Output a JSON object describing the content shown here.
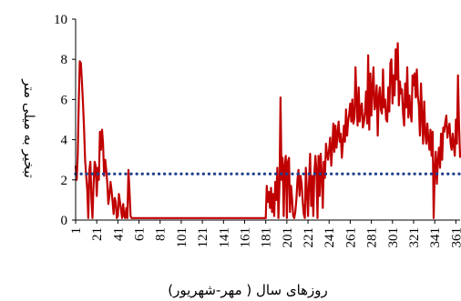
{
  "chart_data": {
    "type": "line",
    "title": "",
    "xlabel": "روزهای سال ( مهر-شهریور)",
    "ylabel": "تبخیر به میلی متر",
    "xlim": [
      1,
      365
    ],
    "ylim": [
      0,
      10
    ],
    "y_ticks": [
      "0",
      "2",
      "4",
      "6",
      "8",
      "10"
    ],
    "x_ticks": [
      "1",
      "21",
      "41",
      "61",
      "81",
      "101",
      "121",
      "141",
      "161",
      "181",
      "201",
      "221",
      "241",
      "261",
      "281",
      "301",
      "321",
      "341",
      "361"
    ],
    "grid": false,
    "legend": "none",
    "series": [
      {
        "style": "solid",
        "color": "#c00000",
        "points": [
          [
            1,
            2.7
          ],
          [
            2,
            2.0
          ],
          [
            3,
            3.2
          ],
          [
            4,
            6.0
          ],
          [
            5,
            7.9
          ],
          [
            6,
            7.8
          ],
          [
            7,
            6.8
          ],
          [
            8,
            5.8
          ],
          [
            9,
            4.5
          ],
          [
            10,
            3.0
          ],
          [
            11,
            2.2
          ],
          [
            12,
            1.5
          ],
          [
            13,
            0.1
          ],
          [
            14,
            2.5
          ],
          [
            15,
            2.9
          ],
          [
            16,
            1.0
          ],
          [
            17,
            0.1
          ],
          [
            18,
            1.8
          ],
          [
            19,
            2.9
          ],
          [
            20,
            2.7
          ],
          [
            21,
            1.2
          ],
          [
            22,
            2.6
          ],
          [
            23,
            2.0
          ],
          [
            24,
            4.4
          ],
          [
            25,
            3.5
          ],
          [
            26,
            4.5
          ],
          [
            27,
            3.8
          ],
          [
            28,
            2.2
          ],
          [
            29,
            3.0
          ],
          [
            30,
            2.5
          ],
          [
            31,
            1.8
          ],
          [
            32,
            0.8
          ],
          [
            33,
            1.2
          ],
          [
            34,
            1.9
          ],
          [
            35,
            1.5
          ],
          [
            36,
            0.9
          ],
          [
            37,
            0.3
          ],
          [
            38,
            1.1
          ],
          [
            39,
            0.9
          ],
          [
            40,
            0.1
          ],
          [
            41,
            0.2
          ],
          [
            42,
            1.3
          ],
          [
            43,
            0.9
          ],
          [
            44,
            0.5
          ],
          [
            45,
            0.1
          ],
          [
            46,
            0.8
          ],
          [
            47,
            0.2
          ],
          [
            48,
            0.1
          ],
          [
            49,
            0.6
          ],
          [
            50,
            0.1
          ],
          [
            51,
            2.5
          ],
          [
            52,
            1.5
          ],
          [
            53,
            0.2
          ],
          [
            54,
            0.1
          ],
          [
            55,
            0.1
          ],
          [
            100,
            0.1
          ],
          [
            150,
            0.1
          ],
          [
            180,
            0.1
          ],
          [
            181,
            0.1
          ],
          [
            182,
            1.7
          ],
          [
            183,
            0.9
          ],
          [
            184,
            1.4
          ],
          [
            185,
            0.6
          ],
          [
            186,
            1.6
          ],
          [
            187,
            0.4
          ],
          [
            188,
            1.3
          ],
          [
            189,
            0.2
          ],
          [
            190,
            1.9
          ],
          [
            191,
            1.0
          ],
          [
            192,
            2.6
          ],
          [
            193,
            0.1
          ],
          [
            194,
            1.8
          ],
          [
            195,
            6.1
          ],
          [
            196,
            2.0
          ],
          [
            197,
            3.1
          ],
          [
            198,
            0.2
          ],
          [
            199,
            2.7
          ],
          [
            200,
            3.2
          ],
          [
            201,
            0.1
          ],
          [
            202,
            2.9
          ],
          [
            203,
            3.1
          ],
          [
            204,
            0.4
          ],
          [
            205,
            1.7
          ],
          [
            206,
            1.0
          ],
          [
            207,
            0.2
          ],
          [
            208,
            0.1
          ],
          [
            209,
            0.4
          ],
          [
            210,
            1.0
          ],
          [
            211,
            2.0
          ],
          [
            212,
            2.5
          ],
          [
            213,
            1.2
          ],
          [
            214,
            2.2
          ],
          [
            215,
            1.8
          ],
          [
            216,
            0.9
          ],
          [
            217,
            0.3
          ],
          [
            218,
            0.1
          ],
          [
            219,
            2.6
          ],
          [
            220,
            1.4
          ],
          [
            221,
            0.2
          ],
          [
            222,
            1.9
          ],
          [
            223,
            3.3
          ],
          [
            224,
            0.7
          ],
          [
            225,
            2.2
          ],
          [
            226,
            0.2
          ],
          [
            227,
            2.3
          ],
          [
            228,
            3.2
          ],
          [
            229,
            2.5
          ],
          [
            230,
            0.1
          ],
          [
            231,
            3.2
          ],
          [
            232,
            1.2
          ],
          [
            233,
            3.3
          ],
          [
            234,
            2.3
          ],
          [
            235,
            0.6
          ],
          [
            236,
            2.9
          ],
          [
            237,
            2.1
          ],
          [
            238,
            3.8
          ],
          [
            239,
            3.3
          ],
          [
            240,
            3.0
          ],
          [
            241,
            3.5
          ],
          [
            242,
            4.1
          ],
          [
            243,
            2.7
          ],
          [
            244,
            3.6
          ],
          [
            245,
            4.8
          ],
          [
            246,
            3.4
          ],
          [
            247,
            4.7
          ],
          [
            248,
            3.6
          ],
          [
            249,
            4.3
          ],
          [
            250,
            4.9
          ],
          [
            251,
            3.9
          ],
          [
            252,
            4.3
          ],
          [
            253,
            3.1
          ],
          [
            254,
            3.8
          ],
          [
            255,
            4.7
          ],
          [
            256,
            3.9
          ],
          [
            257,
            5.5
          ],
          [
            258,
            4.2
          ],
          [
            259,
            4.9
          ],
          [
            260,
            5.3
          ],
          [
            261,
            5.8
          ],
          [
            262,
            4.9
          ],
          [
            263,
            6.0
          ],
          [
            264,
            4.8
          ],
          [
            265,
            5.1
          ],
          [
            266,
            7.6
          ],
          [
            267,
            5.9
          ],
          [
            268,
            4.7
          ],
          [
            269,
            6.6
          ],
          [
            270,
            4.9
          ],
          [
            271,
            5.6
          ],
          [
            272,
            5.8
          ],
          [
            273,
            4.6
          ],
          [
            274,
            4.9
          ],
          [
            275,
            5.4
          ],
          [
            276,
            6.4
          ],
          [
            277,
            4.8
          ],
          [
            278,
            8.2
          ],
          [
            279,
            4.5
          ],
          [
            280,
            7.3
          ],
          [
            281,
            5.2
          ],
          [
            282,
            6.6
          ],
          [
            283,
            7.6
          ],
          [
            284,
            5.5
          ],
          [
            285,
            5.8
          ],
          [
            286,
            6.7
          ],
          [
            287,
            4.2
          ],
          [
            288,
            6.1
          ],
          [
            289,
            6.6
          ],
          [
            290,
            5.5
          ],
          [
            291,
            5.3
          ],
          [
            292,
            7.5
          ],
          [
            293,
            5.6
          ],
          [
            294,
            6.0
          ],
          [
            295,
            5.0
          ],
          [
            296,
            4.9
          ],
          [
            297,
            6.6
          ],
          [
            298,
            5.4
          ],
          [
            299,
            7.8
          ],
          [
            300,
            8.0
          ],
          [
            301,
            5.8
          ],
          [
            302,
            7.2
          ],
          [
            303,
            6.2
          ],
          [
            304,
            8.5
          ],
          [
            305,
            7.0
          ],
          [
            306,
            8.8
          ],
          [
            307,
            5.7
          ],
          [
            308,
            6.9
          ],
          [
            309,
            6.3
          ],
          [
            310,
            6.5
          ],
          [
            311,
            5.3
          ],
          [
            312,
            4.7
          ],
          [
            313,
            6.8
          ],
          [
            314,
            5.6
          ],
          [
            315,
            7.6
          ],
          [
            316,
            5.1
          ],
          [
            317,
            6.2
          ],
          [
            318,
            5.4
          ],
          [
            319,
            4.9
          ],
          [
            320,
            7.2
          ],
          [
            321,
            6.7
          ],
          [
            322,
            7.3
          ],
          [
            323,
            6.1
          ],
          [
            324,
            7.5
          ],
          [
            325,
            6.2
          ],
          [
            326,
            5.7
          ],
          [
            327,
            4.2
          ],
          [
            328,
            6.8
          ],
          [
            329,
            5.1
          ],
          [
            330,
            3.8
          ],
          [
            331,
            5.9
          ],
          [
            332,
            4.4
          ],
          [
            333,
            3.8
          ],
          [
            334,
            4.8
          ],
          [
            335,
            4.0
          ],
          [
            336,
            3.5
          ],
          [
            337,
            4.5
          ],
          [
            338,
            3.2
          ],
          [
            339,
            4.4
          ],
          [
            340,
            0.1
          ],
          [
            341,
            2.5
          ],
          [
            342,
            3.4
          ],
          [
            343,
            1.8
          ],
          [
            344,
            3.0
          ],
          [
            345,
            3.6
          ],
          [
            346,
            2.6
          ],
          [
            347,
            4.3
          ],
          [
            348,
            3.0
          ],
          [
            349,
            4.6
          ],
          [
            350,
            4.4
          ],
          [
            351,
            4.9
          ],
          [
            352,
            5.2
          ],
          [
            353,
            4.1
          ],
          [
            354,
            4.5
          ],
          [
            355,
            4.8
          ],
          [
            356,
            3.8
          ],
          [
            357,
            3.5
          ],
          [
            358,
            4.3
          ],
          [
            359,
            3.7
          ],
          [
            360,
            3.2
          ],
          [
            361,
            5.0
          ],
          [
            362,
            3.8
          ],
          [
            363,
            7.2
          ],
          [
            364,
            4.8
          ],
          [
            365,
            3.1
          ]
        ]
      },
      {
        "style": "dotted",
        "color": "#1f3f8c",
        "points": [
          [
            1,
            2.3
          ],
          [
            365,
            2.3
          ]
        ]
      }
    ]
  }
}
